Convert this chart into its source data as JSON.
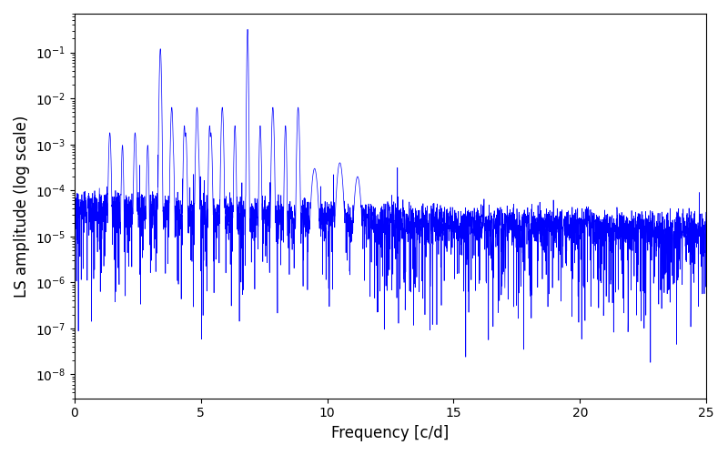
{
  "xlabel": "Frequency [c/d]",
  "ylabel": "LS amplitude (log scale)",
  "xlim": [
    0,
    25
  ],
  "ylim": [
    3e-09,
    0.7
  ],
  "line_color": "#0000ff",
  "line_width": 0.5,
  "background_color": "#ffffff",
  "figsize": [
    8.0,
    5.0
  ],
  "dpi": 100,
  "freq_max": 25.0,
  "n_points": 4000,
  "peak1_freq": 3.4,
  "peak1_amp": 0.12,
  "peak2_freq": 6.85,
  "peak2_amp": 0.32,
  "noise_floor_low": 3e-05,
  "noise_floor_high": 8e-06,
  "seed": 7
}
